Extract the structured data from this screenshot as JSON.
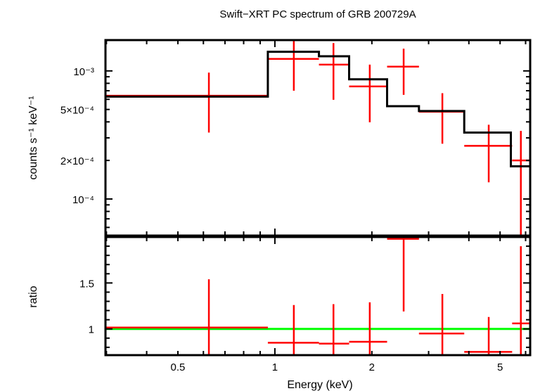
{
  "chart_data": {
    "type": "scatter",
    "title": "Swift−XRT PC spectrum of GRB 200729A",
    "xlabel": "Energy (keV)",
    "xscale": "log",
    "xlim": [
      0.298,
      6.2
    ],
    "x_ticks": [
      {
        "value": 0.5,
        "label": "0.5"
      },
      {
        "value": 1,
        "label": "1"
      },
      {
        "value": 2,
        "label": "2"
      },
      {
        "value": 5,
        "label": "5"
      }
    ],
    "panels": [
      {
        "name": "spectrum",
        "ylabel": "counts s⁻¹ keV⁻¹",
        "yscale": "log",
        "ylim": [
          5.18e-05,
          0.00174
        ],
        "y_ticks": [
          {
            "value": 0.001,
            "label": "10⁻³"
          },
          {
            "value": 0.0005,
            "label": "5×10⁻⁴"
          },
          {
            "value": 0.0002,
            "label": "2×10⁻⁴"
          },
          {
            "value": 0.0001,
            "label": "10⁻⁴"
          }
        ],
        "series": [
          {
            "name": "data",
            "color": "#ff0000",
            "style": "crosses",
            "points": [
              {
                "xlo": 0.298,
                "xhi": 0.951,
                "x": 0.624,
                "y": 0.00064,
                "ylo": 0.00033,
                "yhi": 0.00097
              },
              {
                "xlo": 0.951,
                "xhi": 1.37,
                "x": 1.145,
                "y": 0.00124,
                "ylo": 0.0007,
                "yhi": 0.0018
              },
              {
                "xlo": 1.37,
                "xhi": 1.7,
                "x": 1.52,
                "y": 0.00112,
                "ylo": 0.000595,
                "yhi": 0.00165
              },
              {
                "xlo": 1.7,
                "xhi": 2.23,
                "x": 1.97,
                "y": 0.000757,
                "ylo": 0.000397,
                "yhi": 0.00112
              },
              {
                "xlo": 2.23,
                "xhi": 2.8,
                "x": 2.51,
                "y": 0.00108,
                "ylo": 0.00065,
                "yhi": 0.00149
              },
              {
                "xlo": 2.8,
                "xhi": 3.87,
                "x": 3.31,
                "y": 0.00048,
                "ylo": 0.00027,
                "yhi": 0.00067
              },
              {
                "xlo": 3.87,
                "xhi": 5.45,
                "x": 4.61,
                "y": 0.00026,
                "ylo": 0.000135,
                "yhi": 0.00038
              },
              {
                "xlo": 5.45,
                "xhi": 6.2,
                "x": 5.8,
                "y": 0.0002,
                "ylo": 5e-05,
                "yhi": 0.00034
              }
            ]
          },
          {
            "name": "model",
            "color": "#000000",
            "style": "steps",
            "steps": [
              {
                "xlo": 0.298,
                "xhi": 0.951,
                "y": 0.00063
              },
              {
                "xlo": 0.951,
                "xhi": 1.37,
                "y": 0.00141
              },
              {
                "xlo": 1.37,
                "xhi": 1.7,
                "y": 0.0013
              },
              {
                "xlo": 1.7,
                "xhi": 2.23,
                "y": 0.00086
              },
              {
                "xlo": 2.23,
                "xhi": 2.8,
                "y": 0.00053
              },
              {
                "xlo": 2.8,
                "xhi": 3.87,
                "y": 0.000486
              },
              {
                "xlo": 3.87,
                "xhi": 5.4,
                "y": 0.00033
              },
              {
                "xlo": 5.4,
                "xhi": 6.2,
                "y": 0.00018
              }
            ]
          }
        ]
      },
      {
        "name": "ratio",
        "ylabel": "ratio",
        "yscale": "linear",
        "ylim": [
          0.715,
          2.0
        ],
        "y_ticks": [
          {
            "value": 1.5,
            "label": "1.5"
          },
          {
            "value": 1,
            "label": "1"
          }
        ],
        "reference_line": {
          "y": 1,
          "color": "#00ff00"
        },
        "series": [
          {
            "name": "ratio",
            "color": "#ff0000",
            "style": "crosses",
            "points": [
              {
                "xlo": 0.298,
                "xhi": 0.951,
                "x": 0.624,
                "y": 1.015,
                "ylo": 0.7,
                "yhi": 1.54
              },
              {
                "xlo": 0.951,
                "xhi": 1.37,
                "x": 1.145,
                "y": 0.85,
                "ylo": 0.7,
                "yhi": 1.26
              },
              {
                "xlo": 1.37,
                "xhi": 1.7,
                "x": 1.52,
                "y": 0.84,
                "ylo": 0.7,
                "yhi": 1.27
              },
              {
                "xlo": 1.7,
                "xhi": 2.23,
                "x": 1.97,
                "y": 0.86,
                "ylo": 0.7,
                "yhi": 1.29
              },
              {
                "xlo": 2.23,
                "xhi": 2.8,
                "x": 2.51,
                "y": 1.98,
                "ylo": 1.19,
                "yhi": 2.05
              },
              {
                "xlo": 2.8,
                "xhi": 3.87,
                "x": 3.31,
                "y": 0.95,
                "ylo": 0.7,
                "yhi": 1.38
              },
              {
                "xlo": 3.87,
                "xhi": 5.45,
                "x": 4.61,
                "y": 0.75,
                "ylo": 0.7,
                "yhi": 1.13
              },
              {
                "xlo": 5.45,
                "xhi": 6.2,
                "x": 5.8,
                "y": 1.06,
                "ylo": 0.7,
                "yhi": 1.9
              }
            ]
          }
        ]
      }
    ]
  }
}
